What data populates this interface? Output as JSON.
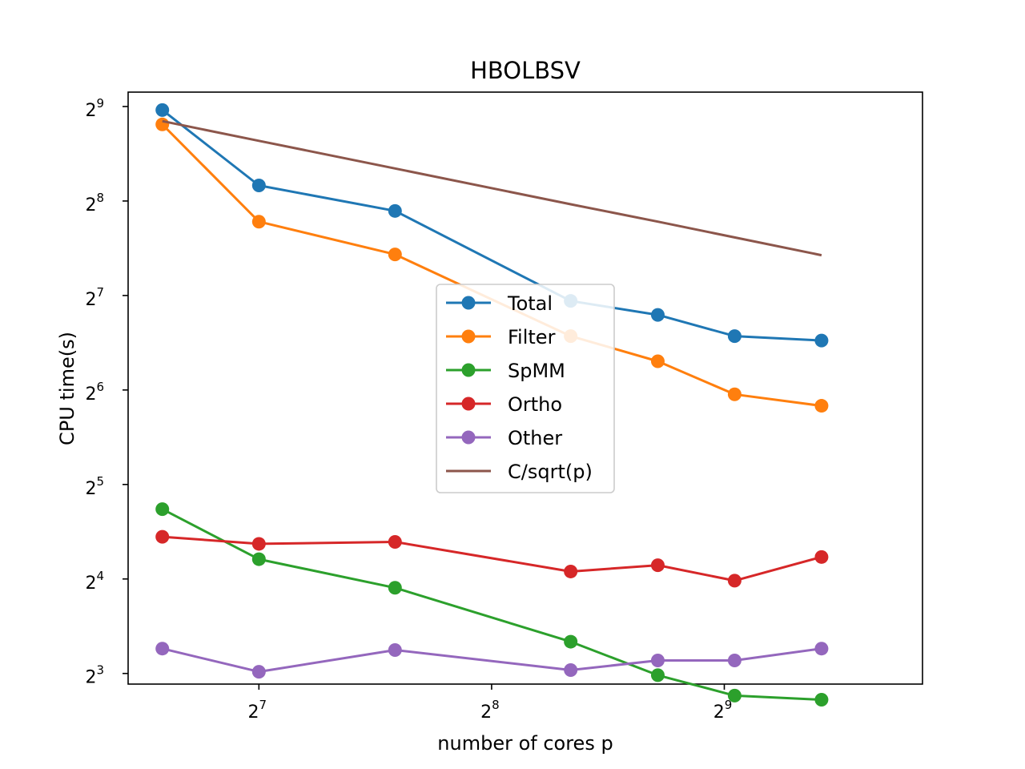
{
  "chart_data": {
    "type": "line",
    "title": "HBOLBSV",
    "xlabel": "number of cores p",
    "ylabel": "CPU time(s)",
    "xscale": "log2",
    "yscale": "log2",
    "xticks": [
      {
        "base": "2",
        "exp": "7",
        "value": 128
      },
      {
        "base": "2",
        "exp": "8",
        "value": 256
      },
      {
        "base": "2",
        "exp": "9",
        "value": 512
      }
    ],
    "yticks": [
      {
        "base": "2",
        "exp": "3",
        "value": 8
      },
      {
        "base": "2",
        "exp": "4",
        "value": 16
      },
      {
        "base": "2",
        "exp": "5",
        "value": 32
      },
      {
        "base": "2",
        "exp": "6",
        "value": 64
      },
      {
        "base": "2",
        "exp": "7",
        "value": 128
      },
      {
        "base": "2",
        "exp": "8",
        "value": 256
      },
      {
        "base": "2",
        "exp": "9",
        "value": 512
      }
    ],
    "xlim": [
      86.7,
      924
    ],
    "ylim": [
      7.4,
      569
    ],
    "x": [
      96,
      128,
      192,
      324,
      420,
      528,
      684
    ],
    "series": [
      {
        "name": "Total",
        "color": "#1f77b4",
        "marker": true,
        "values": [
          499,
          287,
          238,
          123,
          111,
          95,
          92
        ]
      },
      {
        "name": "Filter",
        "color": "#ff7f0e",
        "marker": true,
        "values": [
          449,
          220,
          173,
          95,
          79,
          62,
          57
        ]
      },
      {
        "name": "SpMM",
        "color": "#2ca02c",
        "marker": true,
        "values": [
          26.7,
          18.5,
          15.0,
          10.1,
          7.9,
          6.8,
          6.6
        ]
      },
      {
        "name": "Ortho",
        "color": "#d62728",
        "marker": true,
        "values": [
          21.8,
          20.7,
          21.0,
          16.9,
          17.7,
          15.8,
          18.8
        ]
      },
      {
        "name": "Other",
        "color": "#9467bd",
        "marker": true,
        "values": [
          9.6,
          8.1,
          9.5,
          8.2,
          8.8,
          8.8,
          9.6
        ]
      },
      {
        "name": "C/sqrt(p)",
        "color": "#8c564b",
        "marker": false,
        "values": [
          460,
          398,
          325,
          250,
          220,
          196,
          172
        ]
      }
    ],
    "legend": "center"
  }
}
